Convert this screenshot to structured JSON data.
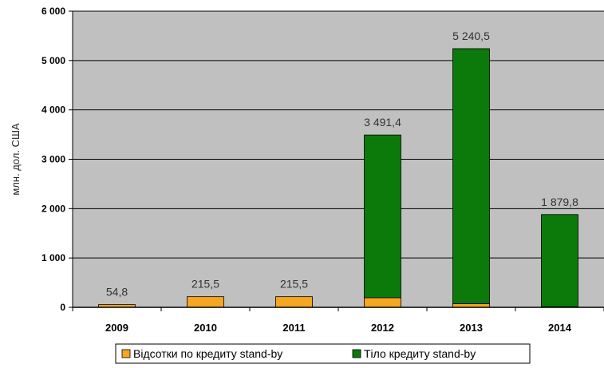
{
  "chart_data": {
    "type": "bar",
    "stacked": true,
    "categories": [
      "2009",
      "2010",
      "2011",
      "2012",
      "2013",
      "2014"
    ],
    "series": [
      {
        "name": "Відсотки по кредиту stand-by",
        "color": "#f5a623",
        "values": [
          54.8,
          215.5,
          215.5,
          195,
          75,
          12
        ]
      },
      {
        "name": "Тіло кредиту stand-by",
        "color": "#0b7a0b",
        "values": [
          0,
          0,
          0,
          3296.4,
          5165.5,
          1867.8
        ]
      }
    ],
    "totals_labels": [
      "54,8",
      "215,5",
      "215,5",
      "3 491,4",
      "5 240,5",
      "1 879,8"
    ],
    "ylabel": "млн. дол. США",
    "ylim": [
      0,
      6000
    ],
    "yticks": [
      0,
      1000,
      2000,
      3000,
      4000,
      5000,
      6000
    ],
    "ytick_labels": [
      "0",
      "1 000",
      "2 000",
      "3 000",
      "4 000",
      "5 000",
      "6 000"
    ],
    "grid": true,
    "plot_background": "#c0c0c0",
    "legend_position": "bottom"
  }
}
